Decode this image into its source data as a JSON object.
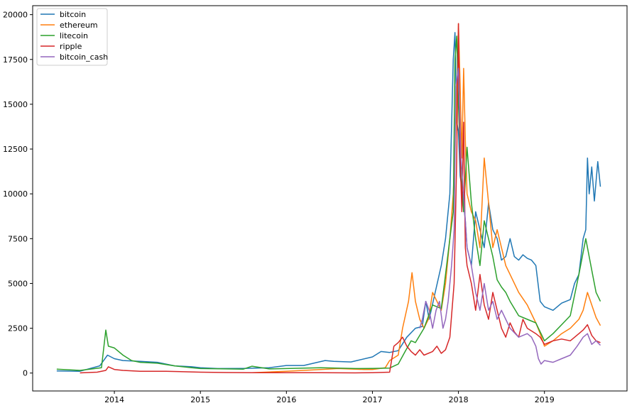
{
  "chart_data": {
    "type": "line",
    "title": "",
    "xlabel": "",
    "ylabel": "",
    "grid": false,
    "legend": "top-left",
    "xlim": [
      2013.05,
      2019.96
    ],
    "ylim": [
      -1000,
      20500
    ],
    "x_ticks": [
      2014,
      2015,
      2016,
      2017,
      2018,
      2019
    ],
    "x_tick_labels": [
      "2014",
      "2015",
      "2016",
      "2017",
      "2018",
      "2019"
    ],
    "y_ticks": [
      0,
      2500,
      5000,
      7500,
      10000,
      12500,
      15000,
      17500,
      20000
    ],
    "y_tick_labels": [
      "0",
      "2500",
      "5000",
      "7500",
      "10000",
      "12500",
      "15000",
      "17500",
      "20000"
    ],
    "series": [
      {
        "name": "bitcoin",
        "color": "#1f77b4",
        "x": [
          2013.33,
          2013.6,
          2013.83,
          2013.92,
          2014.0,
          2014.1,
          2014.3,
          2014.5,
          2014.7,
          2014.9,
          2015.0,
          2015.2,
          2015.5,
          2015.8,
          2016.0,
          2016.2,
          2016.45,
          2016.55,
          2016.75,
          2017.0,
          2017.1,
          2017.2,
          2017.3,
          2017.4,
          2017.5,
          2017.58,
          2017.62,
          2017.66,
          2017.72,
          2017.8,
          2017.85,
          2017.9,
          2017.94,
          2017.96,
          2017.98,
          2018.0,
          2018.02,
          2018.05,
          2018.08,
          2018.1,
          2018.15,
          2018.2,
          2018.25,
          2018.3,
          2018.35,
          2018.4,
          2018.45,
          2018.5,
          2018.55,
          2018.6,
          2018.65,
          2018.7,
          2018.75,
          2018.8,
          2018.85,
          2018.9,
          2018.95,
          2019.0,
          2019.1,
          2019.2,
          2019.3,
          2019.35,
          2019.4,
          2019.45,
          2019.48,
          2019.5,
          2019.52,
          2019.55,
          2019.58,
          2019.62,
          2019.65
        ],
        "y": [
          120,
          100,
          400,
          1000,
          800,
          700,
          650,
          600,
          400,
          350,
          300,
          250,
          260,
          300,
          420,
          420,
          700,
          650,
          620,
          900,
          1200,
          1150,
          1250,
          2000,
          2500,
          2600,
          4000,
          3000,
          4300,
          6000,
          7500,
          10000,
          17500,
          19000,
          14000,
          13500,
          11000,
          10000,
          8500,
          7000,
          6000,
          9000,
          8000,
          7000,
          9500,
          8000,
          7500,
          6300,
          6500,
          7500,
          6500,
          6300,
          6600,
          6400,
          6300,
          6000,
          4000,
          3700,
          3500,
          3900,
          4100,
          5000,
          5500,
          7500,
          8000,
          12000,
          10000,
          11500,
          9600,
          11800,
          10400
        ]
      },
      {
        "name": "ethereum",
        "color": "#ff7f0e",
        "x": [
          2015.6,
          2016.0,
          2016.2,
          2016.4,
          2016.6,
          2016.9,
          2017.0,
          2017.15,
          2017.2,
          2017.3,
          2017.35,
          2017.42,
          2017.46,
          2017.5,
          2017.55,
          2017.6,
          2017.65,
          2017.7,
          2017.75,
          2017.8,
          2017.85,
          2017.9,
          2017.94,
          2017.98,
          2018.0,
          2018.02,
          2018.04,
          2018.06,
          2018.08,
          2018.1,
          2018.15,
          2018.2,
          2018.25,
          2018.3,
          2018.35,
          2018.4,
          2018.45,
          2018.5,
          2018.55,
          2018.6,
          2018.7,
          2018.8,
          2018.9,
          2018.95,
          2019.0,
          2019.1,
          2019.2,
          2019.3,
          2019.4,
          2019.45,
          2019.5,
          2019.55,
          2019.6,
          2019.65
        ],
        "y": [
          20,
          100,
          150,
          200,
          250,
          200,
          200,
          300,
          700,
          1000,
          2500,
          4000,
          5600,
          4000,
          3000,
          2500,
          3000,
          4500,
          4000,
          3500,
          5000,
          7500,
          10000,
          15000,
          19500,
          16000,
          12000,
          17000,
          13000,
          10000,
          9000,
          8500,
          7000,
          12000,
          9500,
          7000,
          8000,
          7000,
          6000,
          5500,
          4500,
          3800,
          2800,
          2200,
          1500,
          1800,
          2200,
          2500,
          3000,
          3500,
          4500,
          3800,
          3100,
          2650
        ]
      },
      {
        "name": "litecoin",
        "color": "#2ca02c",
        "x": [
          2013.33,
          2013.6,
          2013.85,
          2013.9,
          2013.93,
          2014.0,
          2014.1,
          2014.2,
          2014.3,
          2014.5,
          2014.7,
          2014.9,
          2015.0,
          2015.3,
          2015.5,
          2015.6,
          2015.8,
          2016.0,
          2016.4,
          2016.8,
          2017.0,
          2017.2,
          2017.3,
          2017.38,
          2017.45,
          2017.5,
          2017.6,
          2017.7,
          2017.8,
          2017.85,
          2017.9,
          2017.94,
          2017.96,
          2017.98,
          2018.0,
          2018.03,
          2018.06,
          2018.1,
          2018.15,
          2018.2,
          2018.25,
          2018.3,
          2018.4,
          2018.45,
          2018.5,
          2018.55,
          2018.6,
          2018.7,
          2018.8,
          2018.9,
          2018.95,
          2019.0,
          2019.1,
          2019.2,
          2019.3,
          2019.4,
          2019.48,
          2019.52,
          2019.56,
          2019.6,
          2019.65
        ],
        "y": [
          220,
          150,
          300,
          2400,
          1500,
          1400,
          1000,
          700,
          600,
          550,
          400,
          300,
          250,
          230,
          220,
          380,
          230,
          250,
          300,
          250,
          260,
          280,
          500,
          1200,
          1800,
          1700,
          2500,
          3800,
          3600,
          5500,
          7500,
          9000,
          17500,
          18800,
          15000,
          11000,
          9000,
          12600,
          9500,
          7500,
          6000,
          8500,
          6500,
          5200,
          4800,
          4500,
          4000,
          3200,
          3000,
          2800,
          2300,
          1800,
          2200,
          2700,
          3200,
          5500,
          7500,
          6500,
          5500,
          4500,
          4000
        ]
      },
      {
        "name": "ripple",
        "color": "#d62728",
        "x": [
          2013.6,
          2013.8,
          2013.9,
          2013.93,
          2014.0,
          2014.1,
          2014.3,
          2014.6,
          2015.0,
          2015.3,
          2015.6,
          2016.0,
          2016.4,
          2016.8,
          2017.0,
          2017.2,
          2017.25,
          2017.3,
          2017.35,
          2017.4,
          2017.45,
          2017.5,
          2017.55,
          2017.6,
          2017.7,
          2017.75,
          2017.8,
          2017.85,
          2017.9,
          2017.95,
          2017.98,
          2018.0,
          2018.02,
          2018.04,
          2018.06,
          2018.08,
          2018.1,
          2018.15,
          2018.2,
          2018.25,
          2018.3,
          2018.35,
          2018.4,
          2018.45,
          2018.5,
          2018.55,
          2018.6,
          2018.65,
          2018.7,
          2018.75,
          2018.8,
          2018.9,
          2018.95,
          2019.0,
          2019.1,
          2019.2,
          2019.3,
          2019.4,
          2019.45,
          2019.5,
          2019.55,
          2019.6,
          2019.65
        ],
        "y": [
          10,
          50,
          150,
          350,
          200,
          150,
          100,
          100,
          50,
          30,
          20,
          20,
          20,
          10,
          20,
          50,
          1500,
          1700,
          2000,
          1500,
          1200,
          1000,
          1300,
          1000,
          1200,
          1500,
          1100,
          1300,
          2000,
          5000,
          12000,
          19500,
          12000,
          9000,
          14000,
          7000,
          6000,
          5000,
          3500,
          5500,
          3800,
          3000,
          4500,
          3500,
          2500,
          2000,
          2800,
          2300,
          2000,
          3000,
          2500,
          2200,
          2000,
          1600,
          1800,
          1900,
          1800,
          2200,
          2400,
          2700,
          2100,
          1800,
          1700
        ]
      },
      {
        "name": "bitcoin_cash",
        "color": "#9467bd",
        "x": [
          2017.55,
          2017.58,
          2017.62,
          2017.66,
          2017.7,
          2017.74,
          2017.78,
          2017.82,
          2017.85,
          2017.88,
          2017.92,
          2017.95,
          2017.97,
          2018.0,
          2018.03,
          2018.06,
          2018.1,
          2018.15,
          2018.2,
          2018.25,
          2018.3,
          2018.35,
          2018.4,
          2018.45,
          2018.5,
          2018.55,
          2018.6,
          2018.7,
          2018.8,
          2018.85,
          2018.9,
          2018.93,
          2018.96,
          2019.0,
          2019.1,
          2019.2,
          2019.3,
          2019.38,
          2019.45,
          2019.5,
          2019.55,
          2019.6,
          2019.65
        ],
        "y": [
          2500,
          3000,
          4000,
          3500,
          2500,
          3500,
          4000,
          2500,
          3000,
          4000,
          6000,
          8000,
          16000,
          17000,
          12000,
          10000,
          7000,
          6000,
          4500,
          3500,
          5000,
          3500,
          4000,
          3000,
          3500,
          3000,
          2500,
          2000,
          2200,
          2000,
          1500,
          800,
          500,
          700,
          600,
          800,
          1000,
          1500,
          2000,
          2200,
          1600,
          1800,
          1550
        ]
      }
    ]
  }
}
